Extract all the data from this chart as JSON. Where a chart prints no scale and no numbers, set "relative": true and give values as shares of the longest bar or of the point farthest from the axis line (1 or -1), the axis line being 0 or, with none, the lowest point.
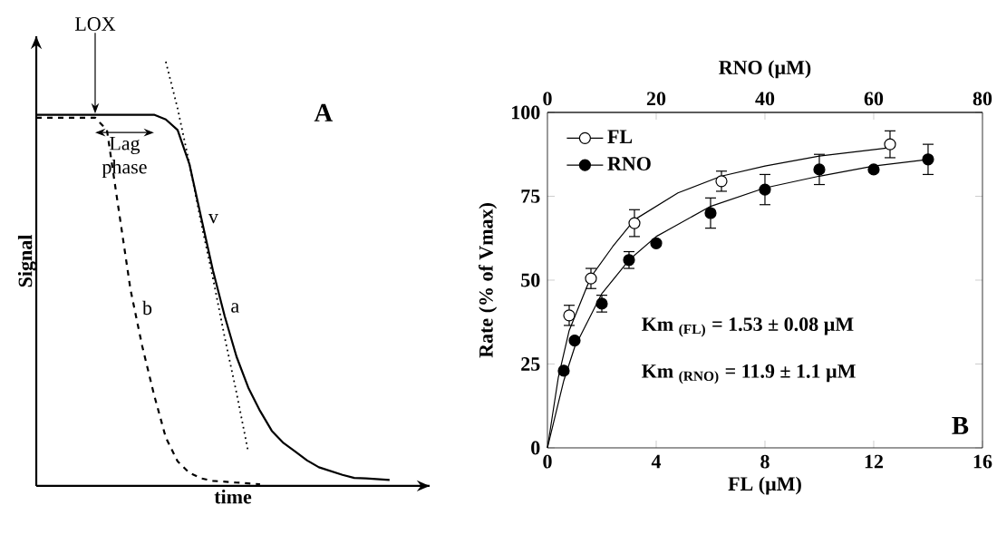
{
  "chart_data": [
    {
      "type": "line",
      "relative": true,
      "xlabel": "time",
      "ylabel": "Signal",
      "categories": [
        null,
        null,
        null,
        null,
        null,
        null,
        null,
        null,
        null,
        null,
        null,
        null,
        null,
        null,
        null,
        null,
        null,
        null,
        null,
        null,
        null,
        null,
        null,
        null,
        null,
        null,
        null,
        null,
        null,
        null,
        null,
        null,
        null
      ],
      "annotations": [
        "LOX",
        "Lag phase",
        "A"
      ],
      "series": [
        {
          "name": "a",
          "color": "#000000",
          "line_style": "solid",
          "values": [
            0.875,
            0.875,
            0.875,
            0.875,
            0.875,
            0.875,
            0.875,
            0.875,
            0.875,
            0.875,
            0.875,
            0.864,
            0.839,
            0.759,
            0.633,
            0.508,
            0.4,
            0.305,
            0.232,
            0.177,
            0.13,
            0.101,
            0.081,
            0.06,
            0.044,
            0.035,
            0.026,
            0.019,
            0.018,
            0.016,
            0.014,
            null,
            null
          ]
        },
        {
          "name": "b",
          "color": "#000000",
          "line_style": "dashed",
          "values": [
            0.868,
            0.868,
            0.868,
            0.868,
            0.868,
            0.868,
            0.839,
            0.651,
            0.463,
            0.329,
            0.215,
            0.114,
            0.058,
            0.031,
            0.018,
            0.012,
            0.01,
            0.008,
            0.006,
            0.004,
            null,
            null,
            null,
            null,
            null,
            null,
            null,
            null,
            null,
            null,
            null,
            null,
            null
          ]
        },
        {
          "name": "v",
          "color": "#000000",
          "line_style": "dotted",
          "values": [
            null,
            null,
            null,
            null,
            null,
            null,
            null,
            null,
            null,
            null,
            null,
            1.0,
            0.89,
            0.76,
            0.62,
            0.49,
            0.35,
            0.22,
            0.08,
            null,
            null,
            null,
            null,
            null,
            null,
            null,
            null,
            null,
            null,
            null,
            null,
            null,
            null
          ]
        }
      ]
    },
    {
      "type": "scatter",
      "xlabel": "FL (µM)",
      "x2label": "RNO (µM)",
      "ylabel": "Rate (% of Vmax)",
      "xlim": [
        0,
        16
      ],
      "xticks": [
        0,
        4,
        8,
        12,
        16
      ],
      "x2lim": [
        0,
        80
      ],
      "x2ticks": [
        0,
        20,
        40,
        60,
        80
      ],
      "ylim": [
        0,
        100
      ],
      "yticks": [
        0,
        25,
        50,
        75,
        100
      ],
      "legend": "top left",
      "annotations": [
        "Km $_{(FL)}$ = 1.53 ± 0.08 µM",
        "Km $_{(RNO)}$ = 11.9 ± 1.1 µM",
        "B"
      ],
      "series": [
        {
          "name": "FL",
          "type": "scatter",
          "marker": "circle",
          "color": "#ffffff",
          "x": [
            0.8,
            1.6,
            3.2,
            6.4,
            12.6
          ],
          "values": [
            39.5,
            50.5,
            67,
            79.5,
            90.5
          ],
          "errors": [
            3,
            3,
            4,
            3,
            4
          ]
        },
        {
          "name": "RNO",
          "type": "scatter",
          "marker": "circle",
          "axis": "x2",
          "color": "#000000",
          "x": [
            3,
            5,
            10,
            15,
            20,
            30,
            40,
            50,
            60,
            70
          ],
          "values": [
            23,
            32,
            43,
            56,
            61,
            70,
            77,
            83,
            83,
            86
          ],
          "errors": [
            null,
            null,
            2.5,
            2.5,
            null,
            4.5,
            4.5,
            4.5,
            null,
            4.5
          ]
        },
        {
          "type": "line",
          "color": "#000000",
          "x": [
            0,
            0.4,
            0.8,
            1.6,
            2.4,
            3.2,
            4.8,
            6.4,
            8,
            10,
            12.6
          ],
          "values": [
            0,
            21,
            35,
            51,
            60,
            68,
            76,
            81,
            84,
            87,
            89.5
          ]
        },
        {
          "type": "line",
          "axis": "x2",
          "color": "#000000",
          "x": [
            0,
            3,
            5,
            10,
            15,
            20,
            30,
            40,
            50,
            60,
            70
          ],
          "values": [
            0,
            20,
            30,
            46,
            56,
            63,
            72,
            77.5,
            81,
            84,
            86
          ]
        }
      ]
    }
  ]
}
